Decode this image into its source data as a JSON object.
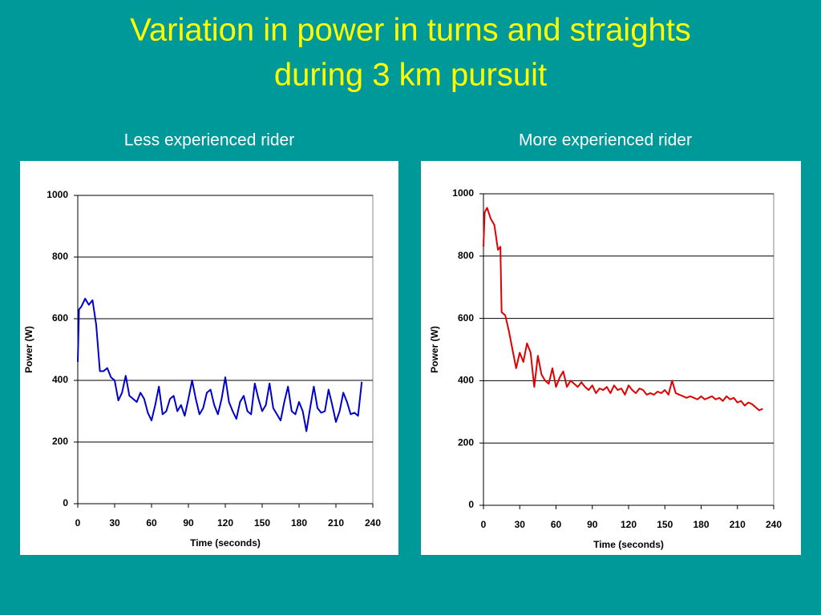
{
  "title": [
    "Variation in power in turns and straights",
    "during 3 km pursuit"
  ],
  "chart_data": [
    {
      "type": "line",
      "title": "Less experienced rider",
      "xlabel": "Time (seconds)",
      "ylabel": "Power (W)",
      "xlim": [
        0,
        240
      ],
      "xticks": [
        0,
        30,
        60,
        90,
        120,
        150,
        180,
        210,
        240
      ],
      "ylim": [
        0,
        1000
      ],
      "yticks": [
        0,
        200,
        400,
        600,
        800,
        1000
      ],
      "grid": true,
      "x": [
        0,
        1,
        3,
        6,
        9,
        12,
        15,
        18,
        21,
        24,
        27,
        30,
        33,
        36,
        39,
        42,
        45,
        48,
        51,
        54,
        57,
        60,
        63,
        66,
        69,
        72,
        75,
        78,
        81,
        84,
        87,
        90,
        93,
        96,
        99,
        102,
        105,
        108,
        111,
        114,
        117,
        120,
        123,
        126,
        129,
        132,
        135,
        138,
        141,
        144,
        147,
        150,
        153,
        156,
        159,
        162,
        165,
        168,
        171,
        174,
        177,
        180,
        183,
        186,
        189,
        192,
        195,
        198,
        201,
        204,
        207,
        210,
        213,
        216,
        219,
        222,
        225,
        228,
        231
      ],
      "series": [
        {
          "name": "Less experienced rider",
          "color": "#0000cc",
          "values": [
            460,
            630,
            640,
            665,
            645,
            660,
            580,
            430,
            430,
            440,
            410,
            400,
            335,
            360,
            415,
            350,
            340,
            330,
            360,
            340,
            295,
            270,
            320,
            380,
            290,
            300,
            340,
            350,
            300,
            320,
            285,
            340,
            400,
            340,
            290,
            310,
            360,
            370,
            320,
            290,
            340,
            410,
            330,
            300,
            275,
            330,
            350,
            300,
            290,
            390,
            340,
            300,
            320,
            390,
            310,
            290,
            270,
            330,
            380,
            300,
            290,
            330,
            300,
            235,
            310,
            380,
            310,
            295,
            300,
            370,
            320,
            265,
            300,
            360,
            330,
            290,
            295,
            285,
            395
          ]
        }
      ]
    },
    {
      "type": "line",
      "title": "More experienced rider",
      "xlabel": "Time (seconds)",
      "ylabel": "Power (W)",
      "xlim": [
        0,
        240
      ],
      "xticks": [
        0,
        30,
        60,
        90,
        120,
        150,
        180,
        210,
        240
      ],
      "ylim": [
        0,
        1000
      ],
      "yticks": [
        0,
        200,
        400,
        600,
        800,
        1000
      ],
      "grid": true,
      "x": [
        0,
        1,
        3,
        6,
        9,
        12,
        14,
        15,
        18,
        21,
        24,
        27,
        30,
        33,
        36,
        39,
        42,
        45,
        48,
        51,
        54,
        57,
        60,
        63,
        66,
        69,
        72,
        75,
        78,
        81,
        84,
        87,
        90,
        93,
        96,
        99,
        102,
        105,
        108,
        111,
        114,
        117,
        120,
        123,
        126,
        129,
        132,
        135,
        138,
        141,
        144,
        147,
        150,
        153,
        156,
        159,
        162,
        165,
        168,
        171,
        174,
        177,
        180,
        183,
        186,
        189,
        192,
        195,
        198,
        201,
        204,
        207,
        210,
        213,
        216,
        219,
        222,
        225,
        228,
        231
      ],
      "series": [
        {
          "name": "More experienced rider",
          "color": "#e00000",
          "values": [
            830,
            940,
            955,
            920,
            900,
            820,
            830,
            620,
            610,
            560,
            500,
            440,
            490,
            460,
            520,
            490,
            380,
            480,
            420,
            400,
            390,
            440,
            380,
            410,
            430,
            380,
            400,
            390,
            380,
            395,
            380,
            370,
            385,
            360,
            375,
            370,
            380,
            360,
            385,
            370,
            375,
            355,
            385,
            370,
            360,
            375,
            370,
            355,
            360,
            355,
            365,
            360,
            370,
            355,
            400,
            360,
            355,
            350,
            345,
            350,
            345,
            340,
            350,
            340,
            345,
            350,
            340,
            345,
            335,
            350,
            340,
            345,
            330,
            335,
            320,
            330,
            325,
            315,
            305,
            310
          ]
        }
      ]
    }
  ]
}
